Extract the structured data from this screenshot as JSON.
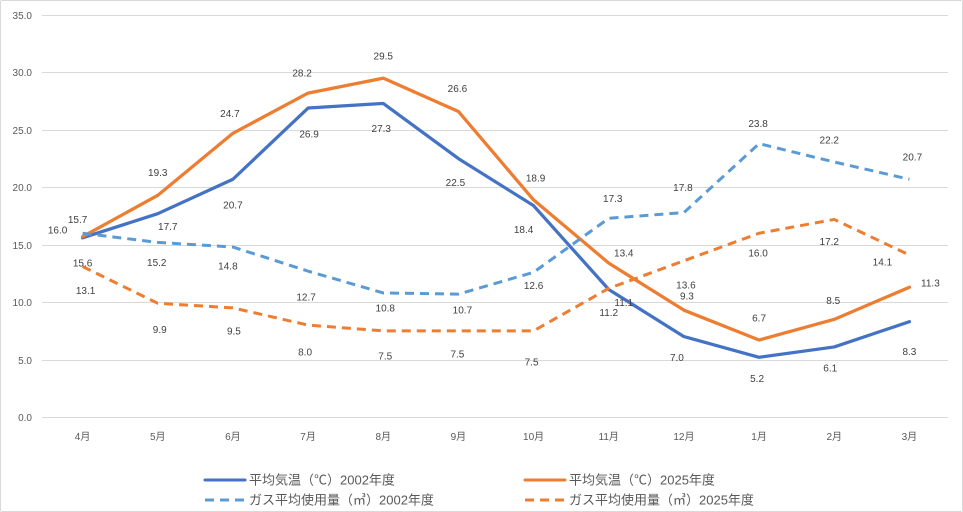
{
  "chart_data": {
    "type": "line",
    "categories": [
      "4月",
      "5月",
      "6月",
      "7月",
      "8月",
      "9月",
      "10月",
      "11月",
      "12月",
      "1月",
      "2月",
      "3月"
    ],
    "ylim": [
      0,
      35
    ],
    "y_ticks": [
      "0.0",
      "5.0",
      "10.0",
      "15.0",
      "20.0",
      "25.0",
      "30.0",
      "35.0"
    ],
    "grid": true,
    "legend": "bottom",
    "data_labels": true,
    "series": [
      {
        "name": "平均気温（℃）2002年度",
        "color": "#4472C4",
        "line_style": "solid",
        "values": [
          15.6,
          17.7,
          20.7,
          26.9,
          27.3,
          22.5,
          18.4,
          11.1,
          7.0,
          5.2,
          6.1,
          8.3
        ]
      },
      {
        "name": "平均気温（℃）2025年度",
        "color": "#ED7D31",
        "line_style": "solid",
        "values": [
          15.7,
          19.3,
          24.7,
          28.2,
          29.5,
          26.6,
          18.9,
          13.4,
          9.3,
          6.7,
          8.5,
          11.3
        ]
      },
      {
        "name": "ガス平均使用量（㎥）2002年度",
        "color": "#5B9BD5",
        "line_style": "dashed",
        "values": [
          16.0,
          15.2,
          14.8,
          12.7,
          10.8,
          10.7,
          12.6,
          17.3,
          17.8,
          23.8,
          22.2,
          20.7
        ]
      },
      {
        "name": "ガス平均使用量（㎥）2025年度",
        "color": "#ED7D31",
        "line_style": "dashed",
        "values": [
          13.1,
          9.9,
          9.5,
          8.0,
          7.5,
          7.5,
          7.5,
          11.2,
          13.6,
          16.0,
          17.2,
          14.1
        ]
      }
    ]
  }
}
